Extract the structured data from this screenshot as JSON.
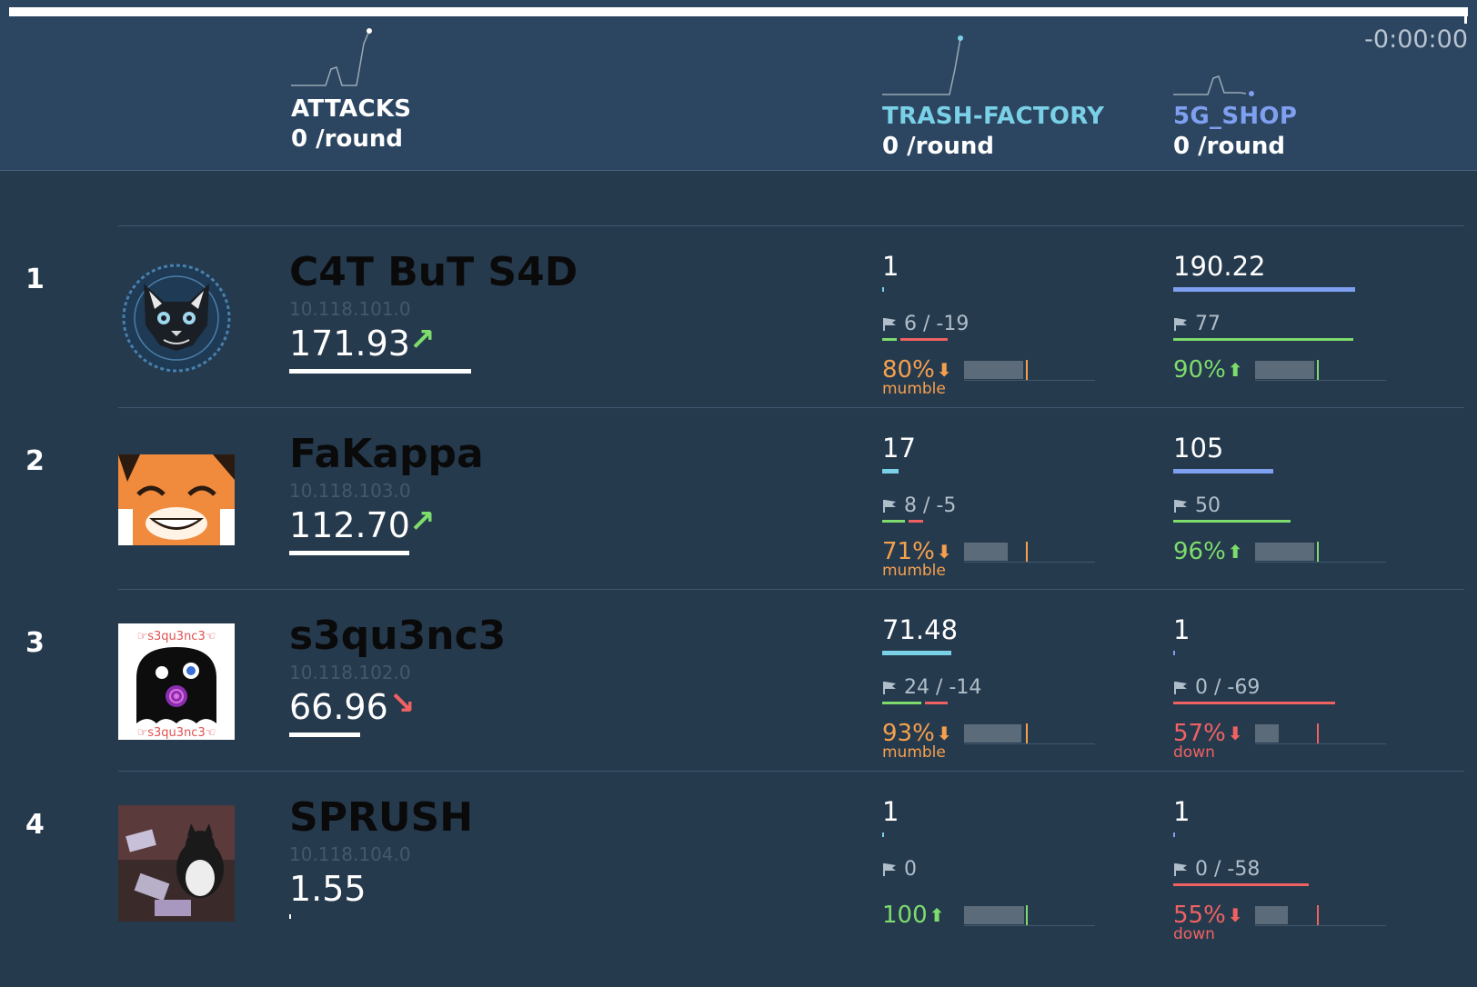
{
  "header": {
    "timer": "-0:00:00",
    "columns": [
      {
        "title": "ATTACKS",
        "per_round": "0",
        "unit": "/round",
        "color": "#ffffff"
      },
      {
        "title": "TRASH-FACTORY",
        "per_round": "0",
        "unit": "/round",
        "color": "#7ad0e6"
      },
      {
        "title": "5G_SHOP",
        "per_round": "0",
        "unit": "/round",
        "color": "#7f9ff0"
      }
    ]
  },
  "colors": {
    "background": "#263a4e",
    "header": "#2c4661",
    "trash_factory_bar": "#7ad0e6",
    "shop_bar": "#7f9ff0",
    "good": "#7ddc6c",
    "bad": "#f06262",
    "mumble": "#f5a04d"
  },
  "teams": [
    {
      "rank": "1",
      "name": "C4T BuT S4D",
      "ip": "10.118.101.0",
      "score": "171.93",
      "score_fill": 1.0,
      "trend": "up",
      "trend_icon": "arrow-up-right-icon",
      "services": [
        {
          "value": "1",
          "value_fill": 0.01,
          "flags": "6 / -19",
          "flag_fill": 1.0,
          "pct": "80%",
          "pct_icon": "arrow-down-icon",
          "status": "mumble",
          "state": "mumble",
          "hist_fill": 0.45,
          "attack": 6,
          "defense": 19
        },
        {
          "value": "190.22",
          "value_fill": 1.0,
          "flags": "77",
          "flag_fill": 1.0,
          "pct": "90%",
          "pct_icon": "arrow-up-icon",
          "status": "",
          "state": "up",
          "hist_fill": 0.45,
          "attack": 77,
          "defense": 0
        }
      ]
    },
    {
      "rank": "2",
      "name": "FaKappa",
      "ip": "10.118.103.0",
      "score": "112.70",
      "score_fill": 0.66,
      "trend": "up",
      "trend_icon": "arrow-up-right-icon",
      "services": [
        {
          "value": "17",
          "value_fill": 0.24,
          "flags": "8 / -5",
          "flag_fill": 0.6,
          "pct": "71%",
          "pct_icon": "arrow-down-icon",
          "status": "mumble",
          "state": "mumble",
          "hist_fill": 0.33,
          "attack": 8,
          "defense": 5
        },
        {
          "value": "105",
          "value_fill": 0.55,
          "flags": "50",
          "flag_fill": 0.65,
          "pct": "96%",
          "pct_icon": "arrow-up-icon",
          "status": "",
          "state": "up",
          "hist_fill": 0.45,
          "attack": 50,
          "defense": 0
        }
      ]
    },
    {
      "rank": "3",
      "name": "s3qu3nc3",
      "ip": "10.118.102.0",
      "score": "66.96",
      "score_fill": 0.39,
      "trend": "down",
      "trend_icon": "arrow-down-right-icon",
      "services": [
        {
          "value": "71.48",
          "value_fill": 1.0,
          "flags": "24 / -14",
          "flag_fill": 1.0,
          "pct": "93%",
          "pct_icon": "arrow-down-icon",
          "status": "mumble",
          "state": "mumble",
          "hist_fill": 0.44,
          "attack": 24,
          "defense": 14
        },
        {
          "value": "1",
          "value_fill": 0.01,
          "flags": "0 / -69",
          "flag_fill": 0.9,
          "pct": "57%",
          "pct_icon": "arrow-down-icon",
          "status": "down",
          "state": "down",
          "hist_fill": 0.18,
          "attack": 0,
          "defense": 69
        }
      ]
    },
    {
      "rank": "4",
      "name": "SPRUSH",
      "ip": "10.118.104.0",
      "score": "1.55",
      "score_fill": 0.01,
      "trend": "",
      "trend_icon": "",
      "services": [
        {
          "value": "1",
          "value_fill": 0.01,
          "flags": "0",
          "flag_fill": 0,
          "pct": "100",
          "pct_icon": "arrow-up-icon",
          "status": "",
          "state": "up",
          "hist_fill": 0.46,
          "attack": 0,
          "defense": 0
        },
        {
          "value": "1",
          "value_fill": 0.01,
          "flags": "0 / -58",
          "flag_fill": 0.75,
          "pct": "55%",
          "pct_icon": "arrow-down-icon",
          "status": "down",
          "state": "down",
          "hist_fill": 0.25,
          "attack": 0,
          "defense": 58
        }
      ]
    }
  ]
}
